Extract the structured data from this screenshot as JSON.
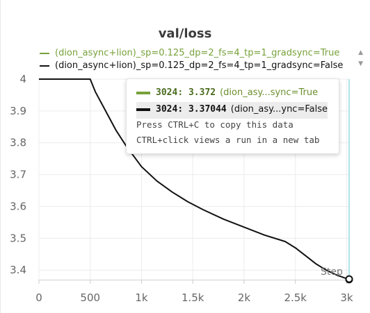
{
  "panel": {
    "title": "val/loss",
    "legend": [
      {
        "label": "(dion_async+lion)_sp=0.125_dp=2_fs=4_tp=1_gradsync=True",
        "color": "#77a13a"
      },
      {
        "label": "(dion_async+lion)_sp=0.125_dp=2_fs=4_tp=1_gradsync=False",
        "color": "#111111"
      }
    ],
    "legend_scroll_up": "▲",
    "legend_scroll_down": "▼",
    "hover_step_label": "Step"
  },
  "tooltip": {
    "rows": [
      {
        "step": "3024",
        "value": "3.372",
        "run": "(dion_asy...sync=True",
        "color": "#77a13a"
      },
      {
        "step": "3024",
        "value": "3.37044",
        "run": "(dion_asy...ync=False",
        "color": "#111111"
      }
    ],
    "hint_copy": "Press CTRL+C to copy this data",
    "hint_click": "CTRL+click views a run in a new tab"
  },
  "chart_data": {
    "type": "line",
    "xlim": [
      0,
      3024
    ],
    "ylim": [
      3.37,
      4.0
    ],
    "x_ticks": [
      0,
      500,
      1000,
      1500,
      2000,
      2500,
      3000
    ],
    "x_tick_labels": [
      "0",
      "500",
      "1k",
      "1.5k",
      "2k",
      "2.5k",
      "3k"
    ],
    "y_ticks": [
      3.4,
      3.5,
      3.6,
      3.7,
      3.8,
      3.9,
      4.0
    ],
    "y_tick_labels": [
      "3.4",
      "3.5",
      "3.6",
      "3.7",
      "3.8",
      "3.9",
      "4"
    ],
    "grid": true,
    "hover_x": 3024,
    "series": [
      {
        "name": "(dion_async+lion)_sp=0.125_dp=2_fs=4_tp=1_gradsync=False",
        "color": "#111111",
        "x": [
          0,
          100,
          200,
          300,
          400,
          500,
          550,
          650,
          750,
          850,
          1000,
          1150,
          1300,
          1450,
          1600,
          1800,
          2000,
          2200,
          2400,
          2500,
          2600,
          2700,
          2800,
          2900,
          3024
        ],
        "y": [
          4.0,
          4.0,
          4.0,
          4.0,
          4.0,
          4.0,
          3.96,
          3.9,
          3.84,
          3.79,
          3.725,
          3.68,
          3.645,
          3.615,
          3.59,
          3.56,
          3.535,
          3.51,
          3.49,
          3.47,
          3.445,
          3.42,
          3.4,
          3.385,
          3.37044
        ]
      },
      {
        "name": "(dion_async+lion)_sp=0.125_dp=2_fs=4_tp=1_gradsync=True",
        "color": "#77a13a",
        "x": [
          3024
        ],
        "y": [
          3.372
        ]
      }
    ]
  }
}
